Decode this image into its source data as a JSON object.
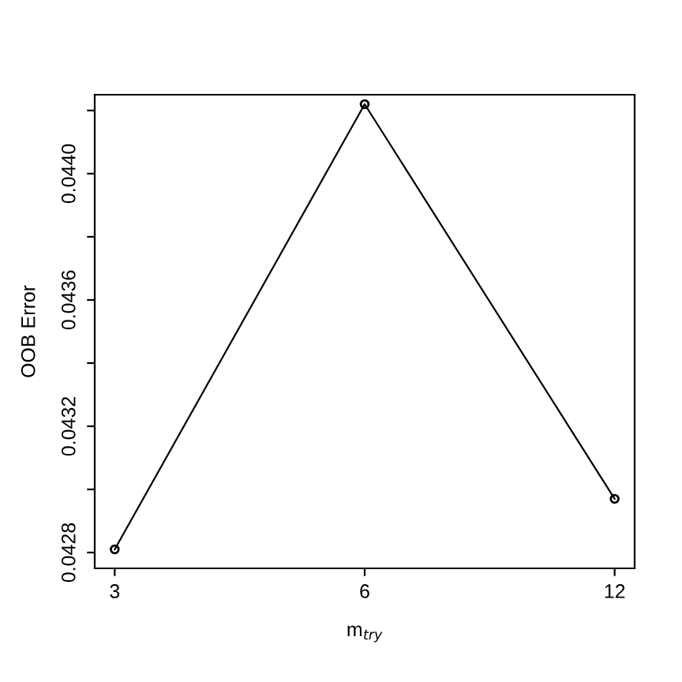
{
  "chart_data": {
    "type": "line",
    "xlabel": "m$_{try}$",
    "ylabel": "OOB Error",
    "categories": [
      "3",
      "6",
      "12"
    ],
    "series": [
      {
        "color": "#000000",
        "values": [
          0.04281,
          0.04422,
          0.04297
        ]
      }
    ],
    "ylim": [
      0.04275,
      0.04425
    ],
    "yticks": [
      0.0428,
      {
        "value": 0.043,
        "label": null
      },
      0.0432,
      {
        "value": 0.0434,
        "label": null
      },
      0.0436,
      {
        "value": 0.0438,
        "label": null
      },
      {
        "value": 0.044,
        "label": "0.0440"
      },
      {
        "value": 0.0442,
        "label": null
      }
    ],
    "marker": "circle",
    "line_style": "solid",
    "grid": false,
    "legend": false
  }
}
